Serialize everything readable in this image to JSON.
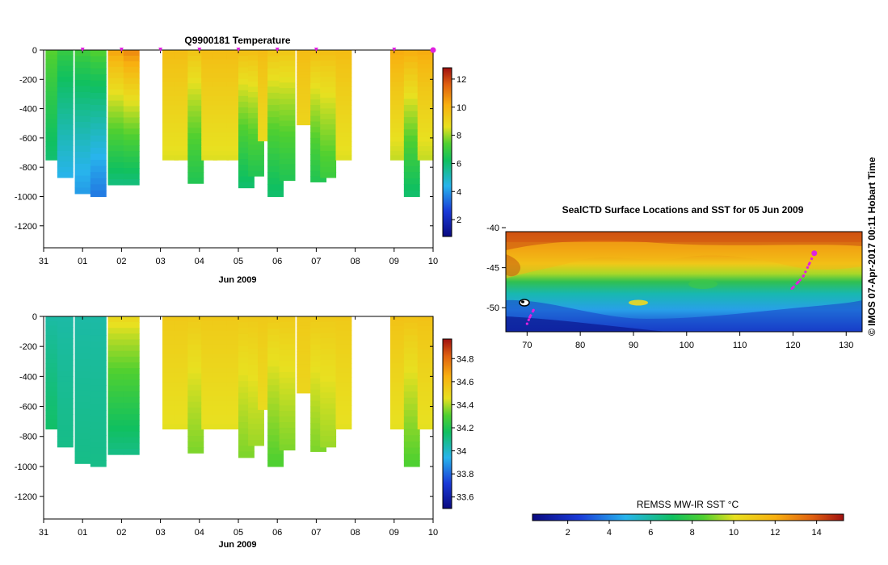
{
  "chart_data": [
    {
      "type": "heatmap",
      "title": "Q9900181  Temperature",
      "xlabel": "Jun 2009",
      "x_tick_labels": [
        "31",
        "01",
        "02",
        "03",
        "04",
        "05",
        "06",
        "07",
        "08",
        "09",
        "10"
      ],
      "y_tick_labels": [
        "0",
        "-200",
        "-400",
        "-600",
        "-800",
        "-1000",
        "-1200"
      ],
      "y_ticks": [
        0,
        -200,
        -400,
        -600,
        -800,
        -1000,
        -1200
      ],
      "xlim": [
        0,
        10.0
      ],
      "ylim": [
        -1350,
        0
      ],
      "colorbar": {
        "ticks": [
          2,
          4,
          6,
          8,
          10,
          12
        ],
        "tick_labels": [
          "2",
          "4",
          "6",
          "8",
          "10",
          "12"
        ],
        "range": [
          0.8,
          12.8
        ]
      },
      "profile_markers_day": [
        1.0,
        2.0,
        3.0,
        4.0,
        5.0,
        6.0,
        7.0,
        9.0
      ],
      "current_marker_day": 10.0,
      "profiles": [
        {
          "day": 0.05,
          "max_depth": -750,
          "surface": 7.5,
          "deep": 6.0
        },
        {
          "day": 0.35,
          "max_depth": -870,
          "surface": 7.0,
          "deep": 4.4
        },
        {
          "day": 0.8,
          "max_depth": -980,
          "surface": 7.2,
          "deep": 4.0
        },
        {
          "day": 1.2,
          "max_depth": -1000,
          "surface": 7.5,
          "deep": 3.5
        },
        {
          "day": 1.65,
          "max_depth": -920,
          "surface": 10.5,
          "deep": 5.8
        },
        {
          "day": 2.05,
          "max_depth": -920,
          "surface": 11.0,
          "deep": 5.8
        },
        {
          "day": 3.05,
          "max_depth": -750,
          "surface": 9.8,
          "deep": 8.5
        },
        {
          "day": 3.35,
          "max_depth": -750,
          "surface": 9.8,
          "deep": 8.5
        },
        {
          "day": 3.7,
          "max_depth": -910,
          "surface": 9.6,
          "deep": 6.5
        },
        {
          "day": 4.05,
          "max_depth": -750,
          "surface": 9.8,
          "deep": 8.5
        },
        {
          "day": 4.35,
          "max_depth": -750,
          "surface": 9.8,
          "deep": 8.5
        },
        {
          "day": 4.7,
          "max_depth": -750,
          "surface": 9.8,
          "deep": 8.5
        },
        {
          "day": 5.0,
          "max_depth": -940,
          "surface": 9.8,
          "deep": 6.0
        },
        {
          "day": 5.25,
          "max_depth": -860,
          "surface": 9.8,
          "deep": 6.5
        },
        {
          "day": 5.5,
          "max_depth": -620,
          "surface": 9.8,
          "deep": 8.8
        },
        {
          "day": 5.75,
          "max_depth": -1000,
          "surface": 9.6,
          "deep": 6.0
        },
        {
          "day": 6.05,
          "max_depth": -890,
          "surface": 9.5,
          "deep": 6.5
        },
        {
          "day": 6.5,
          "max_depth": -510,
          "surface": 9.8,
          "deep": 9.0
        },
        {
          "day": 6.85,
          "max_depth": -900,
          "surface": 9.8,
          "deep": 6.5
        },
        {
          "day": 7.1,
          "max_depth": -870,
          "surface": 9.8,
          "deep": 7.0
        },
        {
          "day": 7.5,
          "max_depth": -750,
          "surface": 9.8,
          "deep": 8.5
        },
        {
          "day": 8.9,
          "max_depth": -750,
          "surface": 10.3,
          "deep": 8.3
        },
        {
          "day": 9.25,
          "max_depth": -1000,
          "surface": 10.3,
          "deep": 6.0
        },
        {
          "day": 9.6,
          "max_depth": -750,
          "surface": 10.3,
          "deep": 8.3
        }
      ]
    },
    {
      "type": "heatmap",
      "title": "",
      "xlabel": "Jun 2009",
      "x_tick_labels": [
        "31",
        "01",
        "02",
        "03",
        "04",
        "05",
        "06",
        "07",
        "08",
        "09",
        "10"
      ],
      "y_tick_labels": [
        "0",
        "-200",
        "-400",
        "-600",
        "-800",
        "-1000",
        "-1200"
      ],
      "y_ticks": [
        0,
        -200,
        -400,
        -600,
        -800,
        -1000,
        -1200
      ],
      "xlim": [
        0,
        10.0
      ],
      "ylim": [
        -1350,
        0
      ],
      "colorbar": {
        "ticks": [
          33.6,
          33.8,
          34,
          34.2,
          34.4,
          34.6,
          34.8
        ],
        "tick_labels": [
          "33.6",
          "33.8",
          "34",
          "34.2",
          "34.4",
          "34.6",
          "34.8"
        ],
        "range": [
          33.5,
          34.97
        ]
      },
      "profiles": [
        {
          "day": 0.05,
          "max_depth": -750,
          "surface": 34.05,
          "deep": 34.15
        },
        {
          "day": 0.35,
          "max_depth": -870,
          "surface": 34.05,
          "deep": 34.1
        },
        {
          "day": 0.8,
          "max_depth": -980,
          "surface": 34.05,
          "deep": 34.1
        },
        {
          "day": 1.2,
          "max_depth": -1000,
          "surface": 34.05,
          "deep": 34.1
        },
        {
          "day": 1.65,
          "max_depth": -920,
          "surface": 34.5,
          "deep": 34.1
        },
        {
          "day": 2.05,
          "max_depth": -920,
          "surface": 34.5,
          "deep": 34.1
        },
        {
          "day": 3.05,
          "max_depth": -750,
          "surface": 34.55,
          "deep": 34.45
        },
        {
          "day": 3.35,
          "max_depth": -750,
          "surface": 34.55,
          "deep": 34.45
        },
        {
          "day": 3.7,
          "max_depth": -910,
          "surface": 34.55,
          "deep": 34.35
        },
        {
          "day": 4.05,
          "max_depth": -750,
          "surface": 34.55,
          "deep": 34.45
        },
        {
          "day": 4.35,
          "max_depth": -750,
          "surface": 34.55,
          "deep": 34.45
        },
        {
          "day": 4.7,
          "max_depth": -750,
          "surface": 34.55,
          "deep": 34.45
        },
        {
          "day": 5.0,
          "max_depth": -940,
          "surface": 34.55,
          "deep": 34.35
        },
        {
          "day": 5.25,
          "max_depth": -860,
          "surface": 34.55,
          "deep": 34.38
        },
        {
          "day": 5.5,
          "max_depth": -620,
          "surface": 34.55,
          "deep": 34.48
        },
        {
          "day": 5.75,
          "max_depth": -1000,
          "surface": 34.55,
          "deep": 34.3
        },
        {
          "day": 6.05,
          "max_depth": -890,
          "surface": 34.55,
          "deep": 34.35
        },
        {
          "day": 6.5,
          "max_depth": -510,
          "surface": 34.55,
          "deep": 34.5
        },
        {
          "day": 6.85,
          "max_depth": -900,
          "surface": 34.55,
          "deep": 34.35
        },
        {
          "day": 7.1,
          "max_depth": -870,
          "surface": 34.55,
          "deep": 34.38
        },
        {
          "day": 7.5,
          "max_depth": -750,
          "surface": 34.55,
          "deep": 34.45
        },
        {
          "day": 8.9,
          "max_depth": -750,
          "surface": 34.58,
          "deep": 34.45
        },
        {
          "day": 9.25,
          "max_depth": -1000,
          "surface": 34.58,
          "deep": 34.3
        },
        {
          "day": 9.6,
          "max_depth": -750,
          "surface": 34.58,
          "deep": 34.45
        }
      ]
    },
    {
      "type": "heatmap",
      "title": "SealCTD Surface Locations and SST for 05 Jun 2009",
      "x_tick_labels": [
        "70",
        "80",
        "90",
        "100",
        "110",
        "120",
        "130"
      ],
      "x_ticks": [
        70,
        80,
        90,
        100,
        110,
        120,
        130
      ],
      "y_tick_labels": [
        "-40",
        "-45",
        "-50"
      ],
      "y_ticks": [
        -40,
        -45,
        -50
      ],
      "xlim": [
        66,
        133
      ],
      "ylim": [
        -53,
        -40.5
      ],
      "colorbar": {
        "label": "REMSS MW-IR SST °C",
        "ticks": [
          2,
          4,
          6,
          8,
          10,
          12,
          14
        ],
        "tick_labels": [
          "2",
          "4",
          "6",
          "8",
          "10",
          "12",
          "14"
        ],
        "range": [
          0.3,
          15.3
        ]
      },
      "seal_track": [
        {
          "lon": 124.0,
          "lat": -43.2
        },
        {
          "lon": 123.0,
          "lat": -44.6
        },
        {
          "lon": 122.0,
          "lat": -46.0
        },
        {
          "lon": 121.0,
          "lat": -46.8
        },
        {
          "lon": 119.8,
          "lat": -47.6
        },
        {
          "lon": 71.2,
          "lat": -50.3
        },
        {
          "lon": 70.5,
          "lat": -51.2
        },
        {
          "lon": 70.0,
          "lat": -52.0
        }
      ]
    }
  ],
  "credit": "© IMOS 07-Apr-2017 00:11 Hobart Time"
}
